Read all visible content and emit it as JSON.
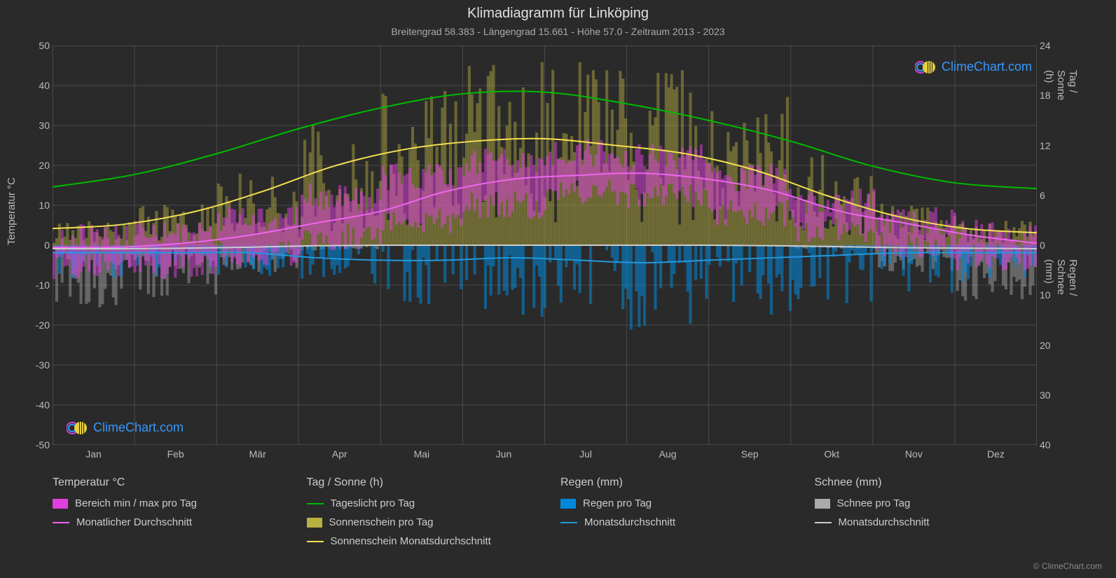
{
  "title": "Klimadiagramm für Linköping",
  "subtitle": "Breitengrad 58.383 - Längengrad 15.661 - Höhe 57.0 - Zeitraum 2013 - 2023",
  "background_color": "#2a2a2a",
  "grid_color": "#4a4a4a",
  "text_color": "#cccccc",
  "axis_left": {
    "label": "Temperatur °C",
    "min": -50,
    "max": 50,
    "tick_step": 10,
    "ticks": [
      -50,
      -40,
      -30,
      -20,
      -10,
      0,
      10,
      20,
      30,
      40,
      50
    ]
  },
  "axis_right_top": {
    "label": "Tag / Sonne (h)",
    "min": 0,
    "max": 24,
    "tick_step": 6,
    "ticks": [
      0,
      6,
      12,
      18,
      24
    ]
  },
  "axis_right_bottom": {
    "label": "Regen / Schnee (mm)",
    "min": 0,
    "max": 40,
    "tick_step": 10,
    "ticks": [
      0,
      10,
      20,
      30,
      40
    ]
  },
  "xaxis": {
    "months": [
      "Jan",
      "Feb",
      "Mär",
      "Apr",
      "Mai",
      "Jun",
      "Jul",
      "Aug",
      "Sep",
      "Okt",
      "Nov",
      "Dez"
    ]
  },
  "series": {
    "daylight": {
      "color": "#00bb00",
      "line_width": 2,
      "values": [
        7.0,
        8.5,
        11.0,
        14.0,
        16.5,
        18.2,
        18.4,
        17.0,
        15.0,
        12.5,
        9.5,
        7.5,
        6.8
      ]
    },
    "sunshine_avg": {
      "color": "#f5e050",
      "line_width": 2,
      "values": [
        2.0,
        2.5,
        4.0,
        6.5,
        9.5,
        11.5,
        12.5,
        12.8,
        12.0,
        11.0,
        9.0,
        6.0,
        3.5,
        2.0,
        1.5
      ]
    },
    "sunshine_bars": {
      "color": "#b8b040",
      "opacity": 0.45
    },
    "temp_range": {
      "color": "#e040e0",
      "opacity": 0.5
    },
    "temp_avg": {
      "color": "#ee66ee",
      "line_width": 2,
      "values": [
        -0.5,
        -0.5,
        0.5,
        2.5,
        5.5,
        8.5,
        13.5,
        16.5,
        17.5,
        18.0,
        16.5,
        13.5,
        8.5,
        5.5,
        2.5,
        0.5
      ]
    },
    "rain_bars": {
      "color": "#0088dd",
      "opacity": 0.55
    },
    "rain_avg": {
      "color": "#2299dd",
      "line_width": 2,
      "values": [
        1.5,
        1.5,
        1.5,
        1.5,
        2.5,
        3.0,
        3.0,
        2.5,
        3.0,
        3.5,
        3.0,
        2.5,
        2.0,
        1.5,
        1.5,
        1.5
      ]
    },
    "snow_bars": {
      "color": "#aaaaaa",
      "opacity": 0.45
    },
    "snow_avg": {
      "color": "#cccccc",
      "line_width": 2,
      "values": [
        0.7,
        0.7,
        0.6,
        0.4,
        0.1,
        0.0,
        0.0,
        0.0,
        0.0,
        0.0,
        0.0,
        0.1,
        0.3,
        0.5,
        0.6,
        0.7
      ]
    }
  },
  "legend": {
    "cols": [
      {
        "title": "Temperatur °C",
        "items": [
          {
            "swatch_type": "block",
            "color": "#e040e0",
            "label": "Bereich min / max pro Tag"
          },
          {
            "swatch_type": "line",
            "color": "#ee66ee",
            "label": "Monatlicher Durchschnitt"
          }
        ]
      },
      {
        "title": "Tag / Sonne (h)",
        "items": [
          {
            "swatch_type": "line",
            "color": "#00bb00",
            "label": "Tageslicht pro Tag"
          },
          {
            "swatch_type": "block",
            "color": "#b8b040",
            "label": "Sonnenschein pro Tag"
          },
          {
            "swatch_type": "line",
            "color": "#f5e050",
            "label": "Sonnenschein Monatsdurchschnitt"
          }
        ]
      },
      {
        "title": "Regen (mm)",
        "items": [
          {
            "swatch_type": "block",
            "color": "#0088dd",
            "label": "Regen pro Tag"
          },
          {
            "swatch_type": "line",
            "color": "#2299dd",
            "label": "Monatsdurchschnitt"
          }
        ]
      },
      {
        "title": "Schnee (mm)",
        "items": [
          {
            "swatch_type": "block",
            "color": "#aaaaaa",
            "label": "Schnee pro Tag"
          },
          {
            "swatch_type": "line",
            "color": "#cccccc",
            "label": "Monatsdurchschnitt"
          }
        ]
      }
    ]
  },
  "watermark": "ClimeChart.com",
  "copyright": "© ClimeChart.com"
}
